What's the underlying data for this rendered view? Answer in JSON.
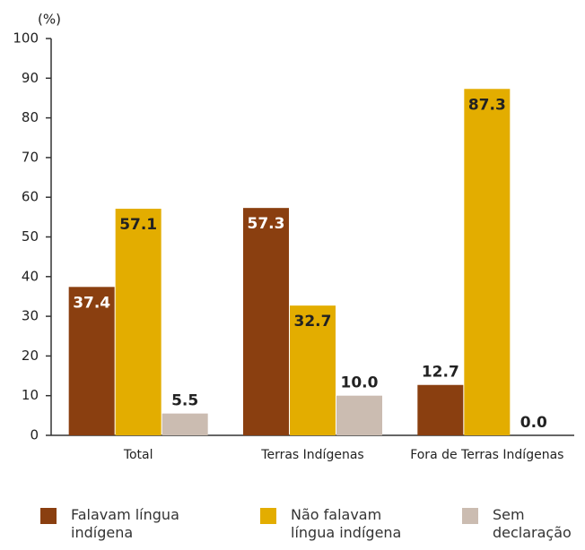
{
  "chart_data": {
    "type": "bar",
    "y_unit": "(%)",
    "categories": [
      "Total",
      "Terras Indígenas",
      "Fora de Terras Indígenas"
    ],
    "series": [
      {
        "name": "Falavam língua indígena",
        "color": "#8a3f10",
        "values": [
          37.4,
          57.3,
          12.7
        ],
        "value_labels": [
          "37.4",
          "57.3",
          "12.7"
        ]
      },
      {
        "name": "Não falavam língua indígena",
        "color": "#e3ad00",
        "values": [
          57.1,
          32.7,
          87.3
        ],
        "value_labels": [
          "57.1",
          "32.7",
          "87.3"
        ]
      },
      {
        "name": "Sem declaração",
        "color": "#cbbcb1",
        "values": [
          5.5,
          10.0,
          0.0
        ],
        "value_labels": [
          "5.5",
          "10.0",
          "0.0"
        ]
      }
    ],
    "ylim": [
      0,
      100
    ],
    "yticks": [
      0,
      10,
      20,
      30,
      40,
      50,
      60,
      70,
      80,
      90,
      100
    ],
    "grid": false,
    "legend": "bottom"
  }
}
